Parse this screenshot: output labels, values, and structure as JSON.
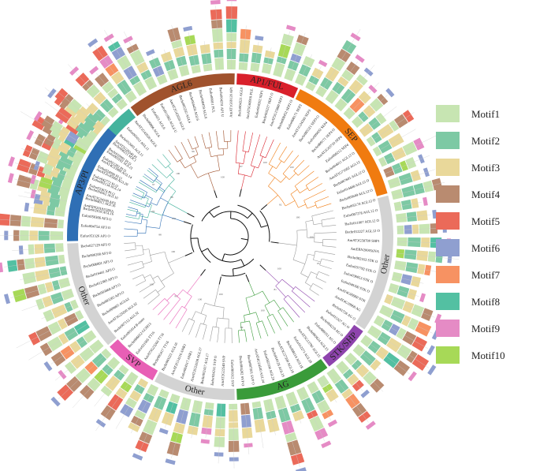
{
  "clades": [
    {
      "name": "SOC1",
      "color": "#45b39d",
      "label_color": "#1e1e1e"
    },
    {
      "name": "AGL6",
      "color": "#a0522d",
      "label_color": "#1e1e1e"
    },
    {
      "name": "AP1/FUL",
      "color": "#d9202b",
      "label_color": "#ffffff"
    },
    {
      "name": "SEP",
      "color": "#f07b10",
      "label_color": "#1e1e1e"
    },
    {
      "name": "Other",
      "color": "#d3d3d3",
      "label_color": "#1e1e1e"
    },
    {
      "name": "STK/SHP",
      "color": "#8e44ad",
      "label_color": "#ffffff"
    },
    {
      "name": "AG",
      "color": "#3a9b3a",
      "label_color": "#ffffff"
    },
    {
      "name": "Other",
      "color": "#d3d3d3",
      "label_color": "#1e1e1e"
    },
    {
      "name": "SVP",
      "color": "#e85fb5",
      "label_color": "#1e1e1e"
    },
    {
      "name": "Other",
      "color": "#d3d3d3",
      "label_color": "#1e1e1e"
    },
    {
      "name": "AP3/PI",
      "color": "#2f6fb5",
      "label_color": "#ffffff"
    }
  ],
  "legend": [
    {
      "label": "Motif1",
      "color": "#c7e5b2"
    },
    {
      "label": "Motif2",
      "color": "#7dc9a4"
    },
    {
      "label": "Motif3",
      "color": "#e9d89a"
    },
    {
      "label": "Motif4",
      "color": "#b98b70"
    },
    {
      "label": "Motif5",
      "color": "#eb6a59"
    },
    {
      "label": "Motif6",
      "color": "#8f9fd0"
    },
    {
      "label": "Motif7",
      "color": "#f79262"
    },
    {
      "label": "Motif8",
      "color": "#53c0a2"
    },
    {
      "label": "Motif9",
      "color": "#e58bc5"
    },
    {
      "label": "Motif10",
      "color": "#a7d957"
    }
  ],
  "tip_labels": [
    "Bschr002018 AGL16",
    "Bschr008012 AGL16",
    "Bschr004302 AGL10",
    "Eufor002134 AGL14",
    "AmAT2G45660 AGL20",
    "AmAT4G11880 AGL14",
    "Eufor003102 AGL21",
    "Bschr008211 SOC1",
    "Bschr012003 AGL11",
    "Eufor005012 AGL11",
    "AmAT1G42020 AGL6",
    "Bschr00006 AGL6",
    "Eufor021 AGL6",
    "Eufor011002 AGL6 U",
    "AmAT2G45650 AGL6",
    "Bschr005202 AGL6",
    "Bschr004450 AGL6",
    "Bschr008459 AGL6",
    "Eufor00051 FUL",
    "Bschr004231 AP1 U",
    "AmAT1G69120 AP1",
    "Bschr004321 AGL8",
    "AmAT5G60910 FUL",
    "Eufor004202 SEP1",
    "Bschr005227 SEP1 O",
    "AmAT5G15800 SEP1",
    "Bschr008452 SEP2 O",
    "Eufor008171 SEP3",
    "AmAT1G24260 SEP3",
    "Bschr005521 SEP3 O",
    "Eufor009032 SEP4",
    "Bschr009171 SEP4 O",
    "AmAT2G03710 SEP4",
    "Eufor008212 SEP4",
    "Bschr004011 AGL12 O",
    "AmAT1G71692 AGL12",
    "Bschr007601 AGL12 O",
    "Eufor014408 AGL12 O",
    "Bschr003649 AGL12 O",
    "Bschr005174 AGL12 O",
    "Eufor007276 AGL12 O",
    "Bschr011007 AGL12 O",
    "Bschr012227 AGL12 O",
    "AmAT3G58780 SHP1",
    "AmERN200056NA",
    "Bschr002163 STK O",
    "Eufor037792 STK O",
    "Eufor036053 STK O",
    "Eufor049390 STK O",
    "AmAT4G09960 STK",
    "AmAT4G18960 AG",
    "Bschr01728 AG O",
    "Eufor015327 AG O",
    "Bschr004219 AG O",
    "Eufor009351 AG O",
    "Bschr003624 AGL15",
    "AmAT5G13790 AGL15",
    "Eufor012271 AGL18",
    "Bschr008114 AGL18",
    "AmAT3G57390 AGL18",
    "Bschr010128 AGL19",
    "Eufor002104 AGL24",
    "AmAT4G24540 AGL24",
    "Bschr007201 SVP O",
    "Bschr004202 SVP O",
    "Eufor001012 SVP",
    "AmAT2G22540 SVP",
    "Eufor024231 SVP O",
    "Bschr002417 AGL17",
    "AmAT2G22630 AGL17",
    "Eufor004317 ANR1",
    "AmAT2G14210 ANR1",
    "Bschr003221 AGL16",
    "Bschr005417 TT16",
    "AmAT5G23260 TT16",
    "Eufor021005 TT16",
    "Bschr006012 GGM13",
    "Eufor001014 B-sister",
    "Bschr007112 AGL32",
    "AmAT5G23260 AGL32",
    "Bschr009005 AGL63",
    "Bschr003202 AP3 O",
    "Bschr003868 AP3 O",
    "Bschr012485 AP3 O",
    "Bschr016441 AP3 O",
    "Bschr006001 AP3 O",
    "Bschr006200 AP3 O",
    "Bschr027129 AP3 O",
    "Eufor053326 AP3 O",
    "Eufor004754 AP3 O",
    "Eufor050366 AP3 O",
    "AmERN2018158NA",
    "AmAT3G54340 AP3",
    "Eufor033674 PI O",
    "Eufor042772 PI O",
    "Eufor024990 PI O",
    "Eufor021282 PI O",
    "Bschr010991 PI O",
    "AmAT5G20240 PI"
  ],
  "bootstrap_values": [
    "100",
    "98",
    "100",
    "96",
    "100",
    "87",
    "100",
    "100",
    "92",
    "100",
    "100",
    "95",
    "100",
    "81",
    "100",
    "99",
    "100",
    "100",
    "93",
    "100",
    "100",
    "88",
    "100",
    "97"
  ]
}
